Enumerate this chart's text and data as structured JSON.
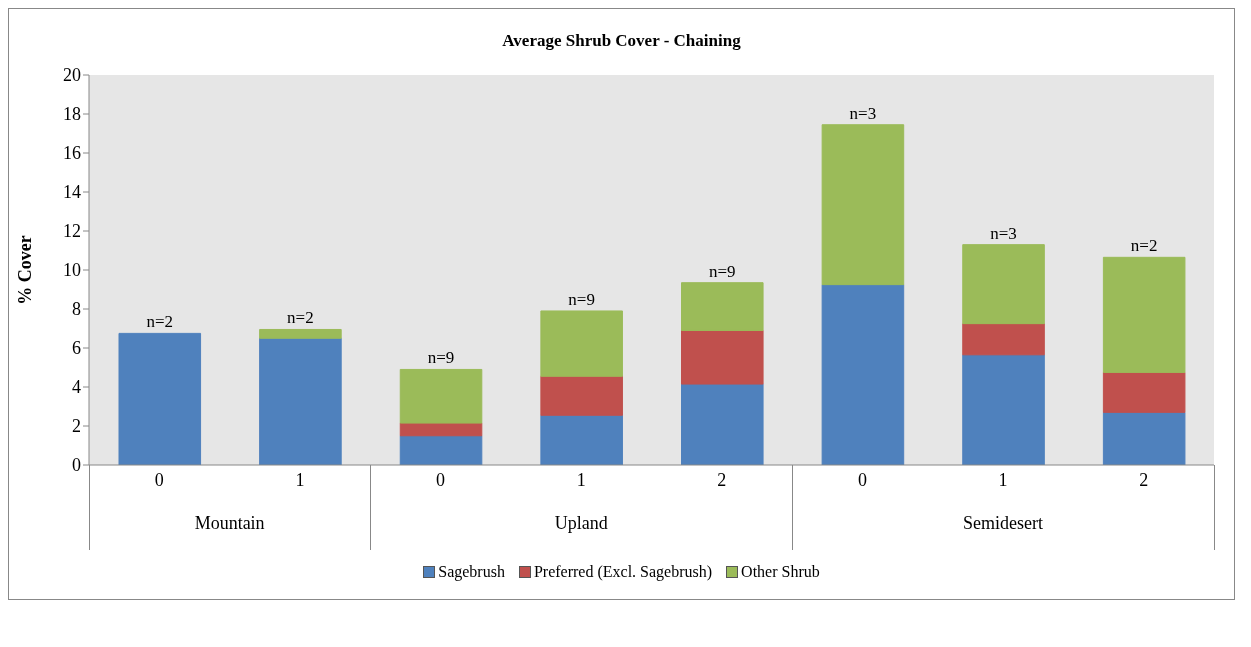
{
  "chart_data": {
    "type": "bar",
    "title": "Average Shrub Cover - Chaining",
    "ylabel": "% Cover",
    "stacked": true,
    "categories": [
      "0",
      "1",
      "0",
      "1",
      "2",
      "0",
      "1",
      "2"
    ],
    "annotations": [
      "Mountain",
      "Upland",
      "Semidesert",
      "n=2",
      "n=2",
      "n=9",
      "n=9",
      "n=9",
      "n=3",
      "n=3",
      "n=2"
    ],
    "series": [
      {
        "name": "Sagebrush",
        "color": "#4f81bd",
        "values": [
          6.75,
          6.5,
          1.5,
          2.55,
          4.15,
          9.25,
          5.65,
          2.7
        ]
      },
      {
        "name": "Preferred (Excl. Sagebrush)",
        "color": "#c0504d",
        "values": [
          0,
          0,
          0.65,
          2.0,
          2.75,
          0,
          1.6,
          2.05
        ]
      },
      {
        "name": "Other Shrub",
        "color": "#9bbb59",
        "values": [
          0,
          0.45,
          2.75,
          3.35,
          2.45,
          8.2,
          4.05,
          5.9
        ]
      }
    ],
    "ylim": [
      0,
      20
    ],
    "yticks": [
      0,
      2,
      4,
      6,
      8,
      10,
      12,
      14,
      16,
      18,
      20
    ],
    "grid": false,
    "legend": "bottom"
  }
}
